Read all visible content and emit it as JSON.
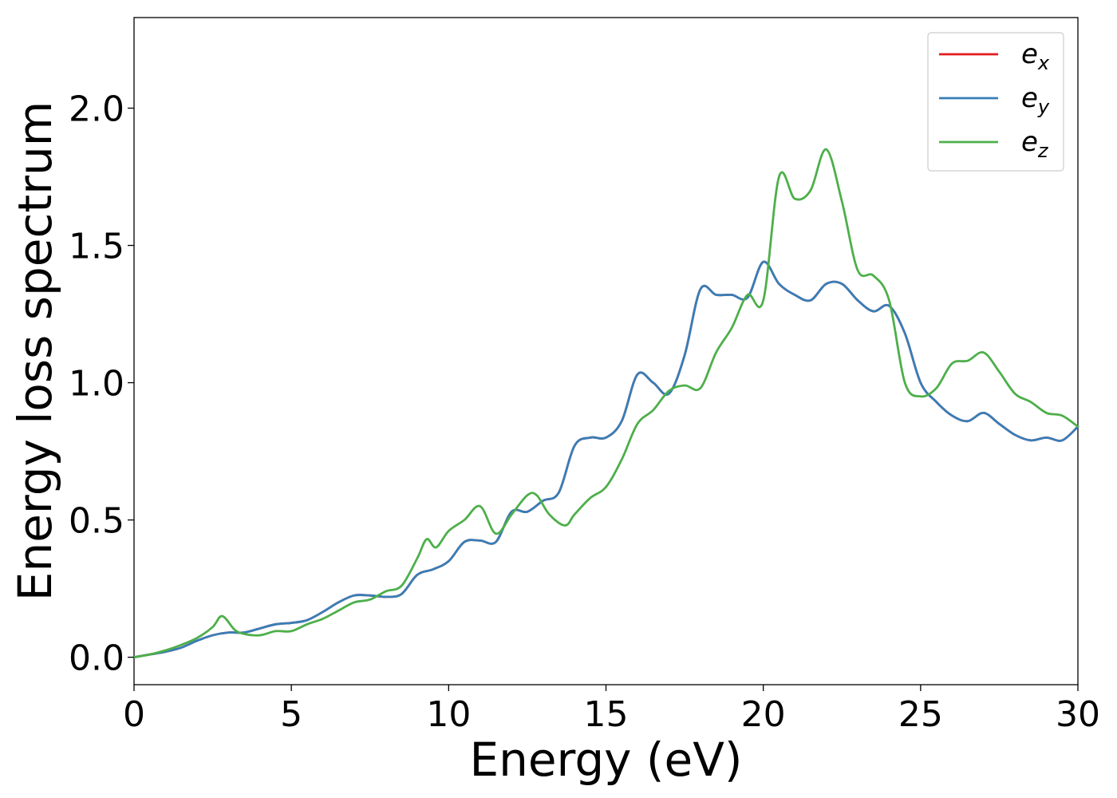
{
  "chart_data": {
    "type": "line",
    "xlabel": "Energy (eV)",
    "ylabel": "Energy loss spectrum",
    "xlim": [
      0,
      30
    ],
    "ylim": [
      -0.1,
      2.33
    ],
    "xticks": [
      0,
      5,
      10,
      15,
      20,
      25,
      30
    ],
    "xtick_labels": [
      "0",
      "5",
      "10",
      "15",
      "20",
      "25",
      "30"
    ],
    "yticks": [
      0.0,
      0.5,
      1.0,
      1.5,
      2.0
    ],
    "ytick_labels": [
      "0.0",
      "0.5",
      "1.0",
      "1.5",
      "2.0"
    ],
    "grid": false,
    "legend_position": "top-right",
    "series": [
      {
        "name": "e_x",
        "symbol": "e",
        "subscript": "x",
        "color": "#e41a1c",
        "x": [
          0,
          0.5,
          1,
          1.5,
          2,
          2.5,
          3,
          3.5,
          4,
          4.5,
          5,
          5.5,
          6,
          6.5,
          7,
          7.5,
          8,
          8.5,
          9,
          9.5,
          10,
          10.5,
          11,
          11.5,
          12,
          12.5,
          13,
          13.5,
          14,
          14.5,
          15,
          15.5,
          16,
          16.5,
          17,
          17.5,
          18,
          18.5,
          19,
          19.5,
          20,
          20.5,
          21,
          21.5,
          22,
          22.5,
          23,
          23.5,
          24,
          24.5,
          25,
          25.5,
          26,
          26.5,
          27,
          27.5,
          28,
          28.5,
          29,
          29.5,
          30
        ],
        "y": [
          0,
          0.01,
          0.02,
          0.035,
          0.06,
          0.08,
          0.09,
          0.09,
          0.105,
          0.12,
          0.125,
          0.135,
          0.165,
          0.2,
          0.225,
          0.225,
          0.22,
          0.23,
          0.3,
          0.32,
          0.35,
          0.42,
          0.425,
          0.42,
          0.53,
          0.53,
          0.57,
          0.6,
          0.77,
          0.8,
          0.8,
          0.86,
          1.03,
          1.0,
          0.96,
          1.1,
          1.34,
          1.32,
          1.32,
          1.31,
          1.44,
          1.36,
          1.32,
          1.3,
          1.36,
          1.36,
          1.3,
          1.26,
          1.28,
          1.18,
          1.0,
          0.93,
          0.88,
          0.86,
          0.89,
          0.85,
          0.81,
          0.79,
          0.8,
          0.79,
          0.84
        ]
      },
      {
        "name": "e_y",
        "symbol": "e",
        "subscript": "y",
        "color": "#377eb8",
        "x": [
          0,
          0.5,
          1,
          1.5,
          2,
          2.5,
          3,
          3.5,
          4,
          4.5,
          5,
          5.5,
          6,
          6.5,
          7,
          7.5,
          8,
          8.5,
          9,
          9.5,
          10,
          10.5,
          11,
          11.5,
          12,
          12.5,
          13,
          13.5,
          14,
          14.5,
          15,
          15.5,
          16,
          16.5,
          17,
          17.5,
          18,
          18.5,
          19,
          19.5,
          20,
          20.5,
          21,
          21.5,
          22,
          22.5,
          23,
          23.5,
          24,
          24.5,
          25,
          25.5,
          26,
          26.5,
          27,
          27.5,
          28,
          28.5,
          29,
          29.5,
          30
        ],
        "y": [
          0,
          0.01,
          0.02,
          0.035,
          0.06,
          0.08,
          0.09,
          0.09,
          0.105,
          0.12,
          0.125,
          0.135,
          0.165,
          0.2,
          0.225,
          0.225,
          0.22,
          0.23,
          0.3,
          0.32,
          0.35,
          0.42,
          0.425,
          0.42,
          0.53,
          0.53,
          0.57,
          0.6,
          0.77,
          0.8,
          0.8,
          0.86,
          1.03,
          1.0,
          0.96,
          1.1,
          1.34,
          1.32,
          1.32,
          1.31,
          1.44,
          1.36,
          1.32,
          1.3,
          1.36,
          1.36,
          1.3,
          1.26,
          1.28,
          1.18,
          1.0,
          0.93,
          0.88,
          0.86,
          0.89,
          0.85,
          0.81,
          0.79,
          0.8,
          0.79,
          0.84
        ]
      },
      {
        "name": "e_z",
        "symbol": "e",
        "subscript": "z",
        "color": "#4daf4a",
        "x": [
          0,
          0.5,
          1,
          1.5,
          2,
          2.5,
          2.8,
          3.2,
          3.5,
          4,
          4.5,
          5,
          5.5,
          6,
          6.5,
          7,
          7.5,
          8,
          8.5,
          9,
          9.3,
          9.6,
          10,
          10.5,
          11,
          11.5,
          12,
          12.5,
          12.8,
          13.2,
          13.7,
          14,
          14.5,
          15,
          15.5,
          16,
          16.5,
          17,
          17.5,
          18,
          18.5,
          19,
          19.5,
          20,
          20.5,
          21,
          21.5,
          22,
          22.5,
          23,
          23.5,
          24,
          24.5,
          25,
          25.5,
          26,
          26.5,
          27,
          27.5,
          28,
          28.5,
          29,
          29.5,
          30
        ],
        "y": [
          0,
          0.01,
          0.025,
          0.045,
          0.07,
          0.11,
          0.15,
          0.1,
          0.085,
          0.08,
          0.095,
          0.095,
          0.12,
          0.14,
          0.17,
          0.2,
          0.21,
          0.24,
          0.26,
          0.36,
          0.43,
          0.4,
          0.46,
          0.5,
          0.55,
          0.45,
          0.52,
          0.59,
          0.59,
          0.52,
          0.48,
          0.52,
          0.58,
          0.62,
          0.72,
          0.85,
          0.9,
          0.97,
          0.99,
          0.98,
          1.11,
          1.2,
          1.32,
          1.3,
          1.75,
          1.67,
          1.7,
          1.85,
          1.66,
          1.41,
          1.39,
          1.3,
          1.0,
          0.95,
          0.98,
          1.07,
          1.08,
          1.11,
          1.04,
          0.96,
          0.93,
          0.89,
          0.88,
          0.84
        ]
      }
    ]
  }
}
